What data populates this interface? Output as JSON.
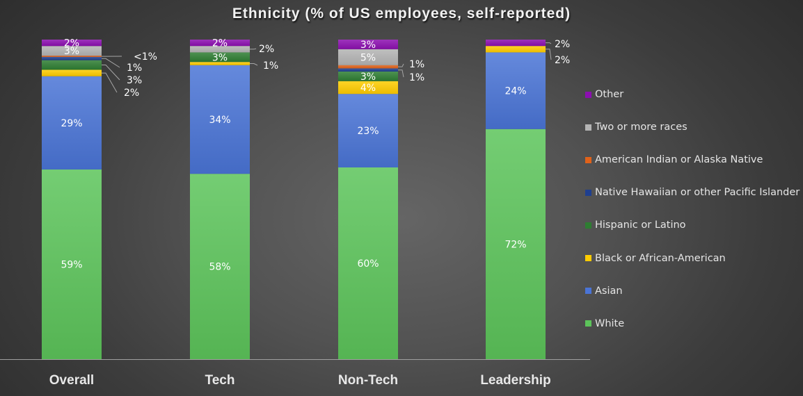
{
  "chart_data": {
    "type": "bar",
    "stacked": true,
    "title": "Ethnicity (% of US employees, self-reported)",
    "xlabel": "",
    "ylabel": "",
    "ylim": [
      0,
      100
    ],
    "grid": false,
    "legend_position": "right",
    "categories": [
      "Overall",
      "Tech",
      "Non-Tech",
      "Leadership"
    ],
    "series": [
      {
        "name": "White",
        "color": "#5cc45a",
        "values": [
          59,
          58,
          60,
          72
        ],
        "labels": [
          "59%",
          "58%",
          "60%",
          "72%"
        ]
      },
      {
        "name": "Asian",
        "color": "#4a74d6",
        "values": [
          29,
          34,
          23,
          24
        ],
        "labels": [
          "29%",
          "34%",
          "23%",
          "24%"
        ]
      },
      {
        "name": "Black or African-American",
        "color": "#ffcc00",
        "values": [
          2,
          1,
          4,
          2
        ],
        "labels": [
          "2%",
          "1%",
          "4%",
          "2%"
        ]
      },
      {
        "name": "Hispanic or Latino",
        "color": "#2e7d32",
        "values": [
          3,
          3,
          3,
          0
        ],
        "labels": [
          "3%",
          "3%",
          "3%",
          ""
        ]
      },
      {
        "name": "Native Hawaiian or other Pacific Islander",
        "color": "#1f3f8f",
        "values": [
          1,
          0,
          1,
          0
        ],
        "labels": [
          "1%",
          "",
          "1%",
          ""
        ]
      },
      {
        "name": "American Indian or Alaska Native",
        "color": "#e0621a",
        "values": [
          0.4,
          0,
          1,
          0
        ],
        "labels": [
          "<1%",
          "",
          "1%",
          ""
        ]
      },
      {
        "name": "Two or more races",
        "color": "#b4b4b4",
        "values": [
          3,
          2,
          5,
          0
        ],
        "labels": [
          "3%",
          "2%",
          "5%",
          ""
        ]
      },
      {
        "name": "Other",
        "color": "#8c0fb0",
        "values": [
          2,
          2,
          3,
          2
        ],
        "labels": [
          "2%",
          "2%",
          "3%",
          "2%"
        ]
      }
    ],
    "label_placement": {
      "Overall": {
        "inside": [
          "White",
          "Asian",
          "Two or more races",
          "Other"
        ],
        "outside": [
          "American Indian or Alaska Native",
          "Native Hawaiian or other Pacific Islander",
          "Hispanic or Latino",
          "Black or African-American"
        ]
      },
      "Tech": {
        "inside": [
          "White",
          "Asian",
          "Hispanic or Latino",
          "Other"
        ],
        "outside": [
          "Two or more races",
          "Black or African-American"
        ]
      },
      "Non-Tech": {
        "inside": [
          "White",
          "Asian",
          "Black or African-American",
          "Hispanic or Latino",
          "Two or more races",
          "Other"
        ],
        "outside": [
          "American Indian or Alaska Native",
          "Native Hawaiian or other Pacific Islander"
        ]
      },
      "Leadership": {
        "inside": [
          "White",
          "Asian"
        ],
        "outside": [
          "Other",
          "Black or African-American"
        ]
      }
    },
    "legend_order": [
      "Other",
      "Two or more races",
      "American Indian or Alaska Native",
      "Native Hawaiian or other Pacific Islander",
      "Hispanic or Latino",
      "Black or African-American",
      "Asian",
      "White"
    ]
  }
}
